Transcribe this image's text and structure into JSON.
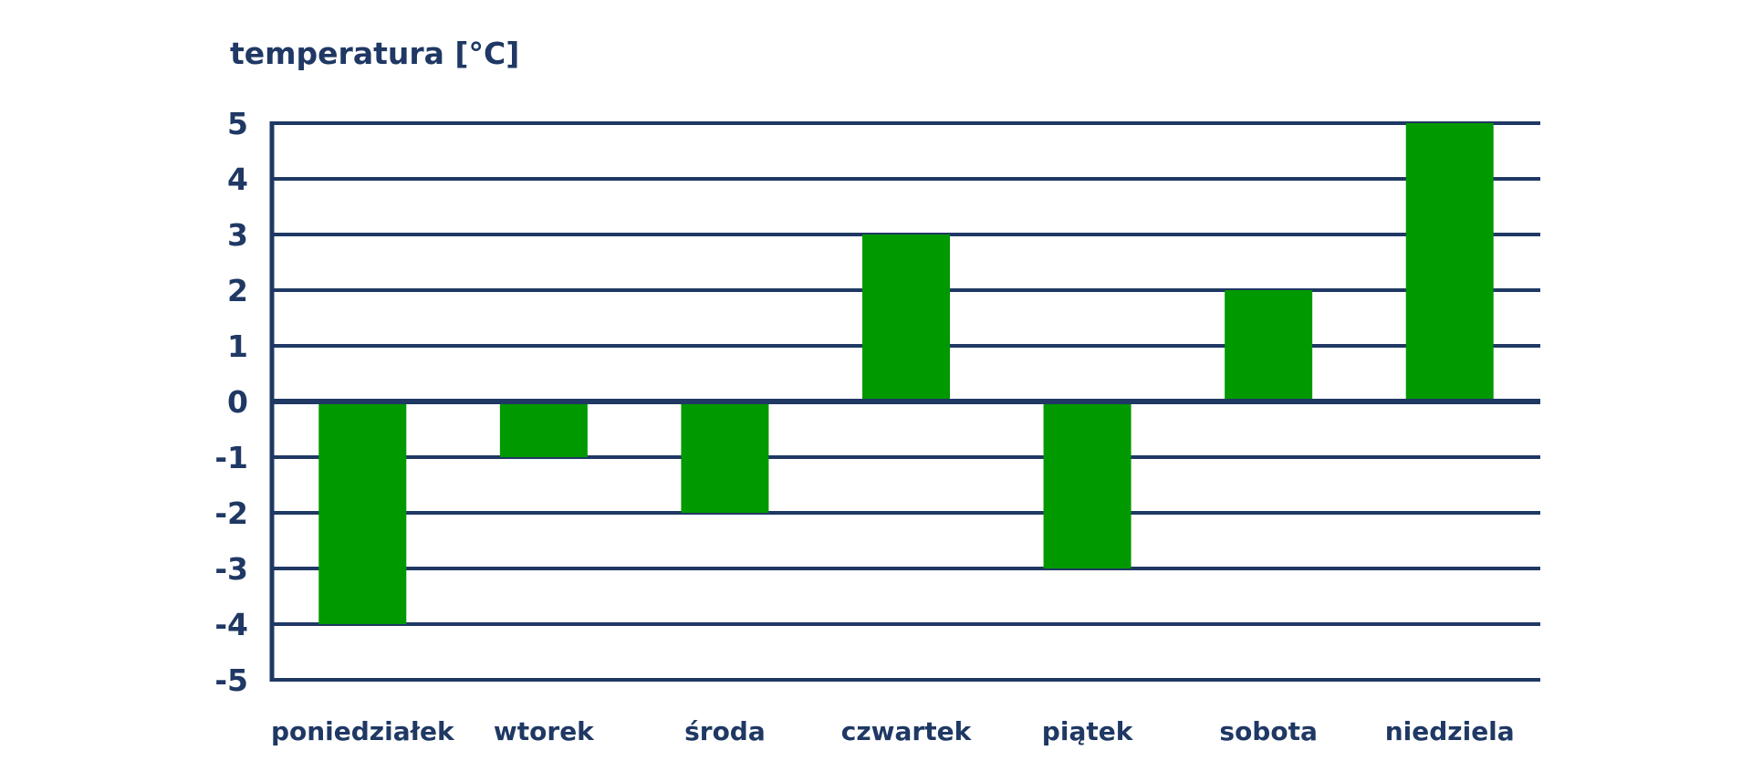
{
  "chart_data": {
    "type": "bar",
    "title": "",
    "xlabel": "",
    "ylabel": "temperatura [°C]",
    "categories": [
      "poniedziałek",
      "wtorek",
      "środa",
      "czwartek",
      "piątek",
      "sobota",
      "niedziela"
    ],
    "values": [
      -4,
      -1,
      -2,
      3,
      -3,
      2,
      5
    ],
    "ylim": [
      -5,
      5
    ],
    "yticks": [
      "5",
      "4",
      "3",
      "2",
      "1",
      "0",
      "-1",
      "-2",
      "-3",
      "-4",
      "-5"
    ],
    "grid": true,
    "legend": "none",
    "colors": {
      "bar": "#009900",
      "axis": "#1f3864",
      "text": "#1f3864"
    }
  }
}
